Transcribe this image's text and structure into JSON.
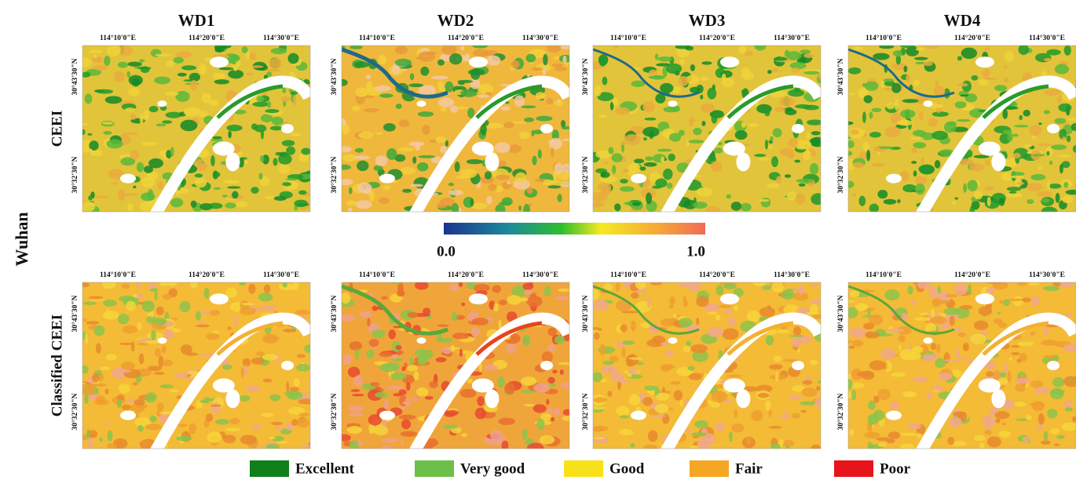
{
  "region": "Wuhan",
  "columns": [
    "WD1",
    "WD2",
    "WD3",
    "WD4"
  ],
  "rows": [
    "CEEI",
    "Classified CEEI"
  ],
  "lon_labels": [
    "114°10'0\"E",
    "114°20'0\"E",
    "114°30'0\"E"
  ],
  "lat_labels": [
    "30°43'30\"N",
    "30°32'30\"N"
  ],
  "colorbar": {
    "min_label": "0.0",
    "max_label": "1.0"
  },
  "legend": [
    {
      "label": "Excellent",
      "color": "#0f7f1c"
    },
    {
      "label": "Very good",
      "color": "#6cc04a"
    },
    {
      "label": "Good",
      "color": "#f7e21a"
    },
    {
      "label": "Fair",
      "color": "#f5a623"
    },
    {
      "label": "Poor",
      "color": "#e8141c"
    }
  ]
}
